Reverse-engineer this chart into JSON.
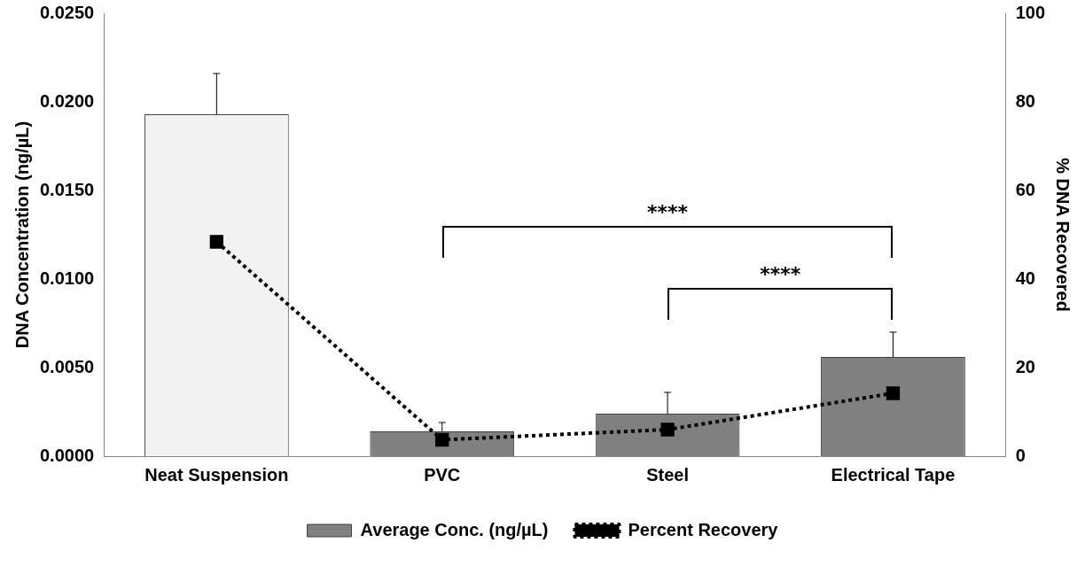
{
  "chart_data": {
    "type": "bar",
    "categories": [
      "Neat Suspension",
      "PVC",
      "Steel",
      "Electrical Tape"
    ],
    "ylabel": "DNA Concentration (ng/µL)",
    "y2label": "% DNA Recovered",
    "series": [
      {
        "name": "Average Conc. (ng/µL)",
        "color": "#808080",
        "colors": [
          "#f2f2f2",
          "#808080",
          "#808080",
          "#808080"
        ],
        "values": [
          0.0193,
          0.0014,
          0.0024,
          0.0056
        ],
        "errors": [
          [
            0.0193,
            0.0216
          ],
          [
            0.0014,
            0.0019
          ],
          [
            0.0024,
            0.0036
          ],
          [
            0.0056,
            0.007
          ]
        ]
      },
      {
        "name": "Percent Recovery",
        "type": "line",
        "axis": "y2",
        "color": "#000000",
        "values": [
          48.4,
          3.7,
          6.0,
          14.2
        ],
        "marker": "square",
        "line_style": "dotted"
      }
    ],
    "ylim": [
      0,
      0.025
    ],
    "yticks": [
      {
        "value": 0,
        "label": "0.0000"
      },
      {
        "value": 0.005,
        "label": "0.0050"
      },
      {
        "value": 0.01,
        "label": "0.0100"
      },
      {
        "value": 0.015,
        "label": "0.0150"
      },
      {
        "value": 0.02,
        "label": "0.0200"
      },
      {
        "value": 0.025,
        "label": "0.0250"
      }
    ],
    "y2lim": [
      0,
      100
    ],
    "y2ticks": [
      0,
      20,
      40,
      60,
      80,
      100
    ],
    "annotations": [
      "****",
      "****"
    ],
    "legend": "bottom",
    "grid": false
  }
}
